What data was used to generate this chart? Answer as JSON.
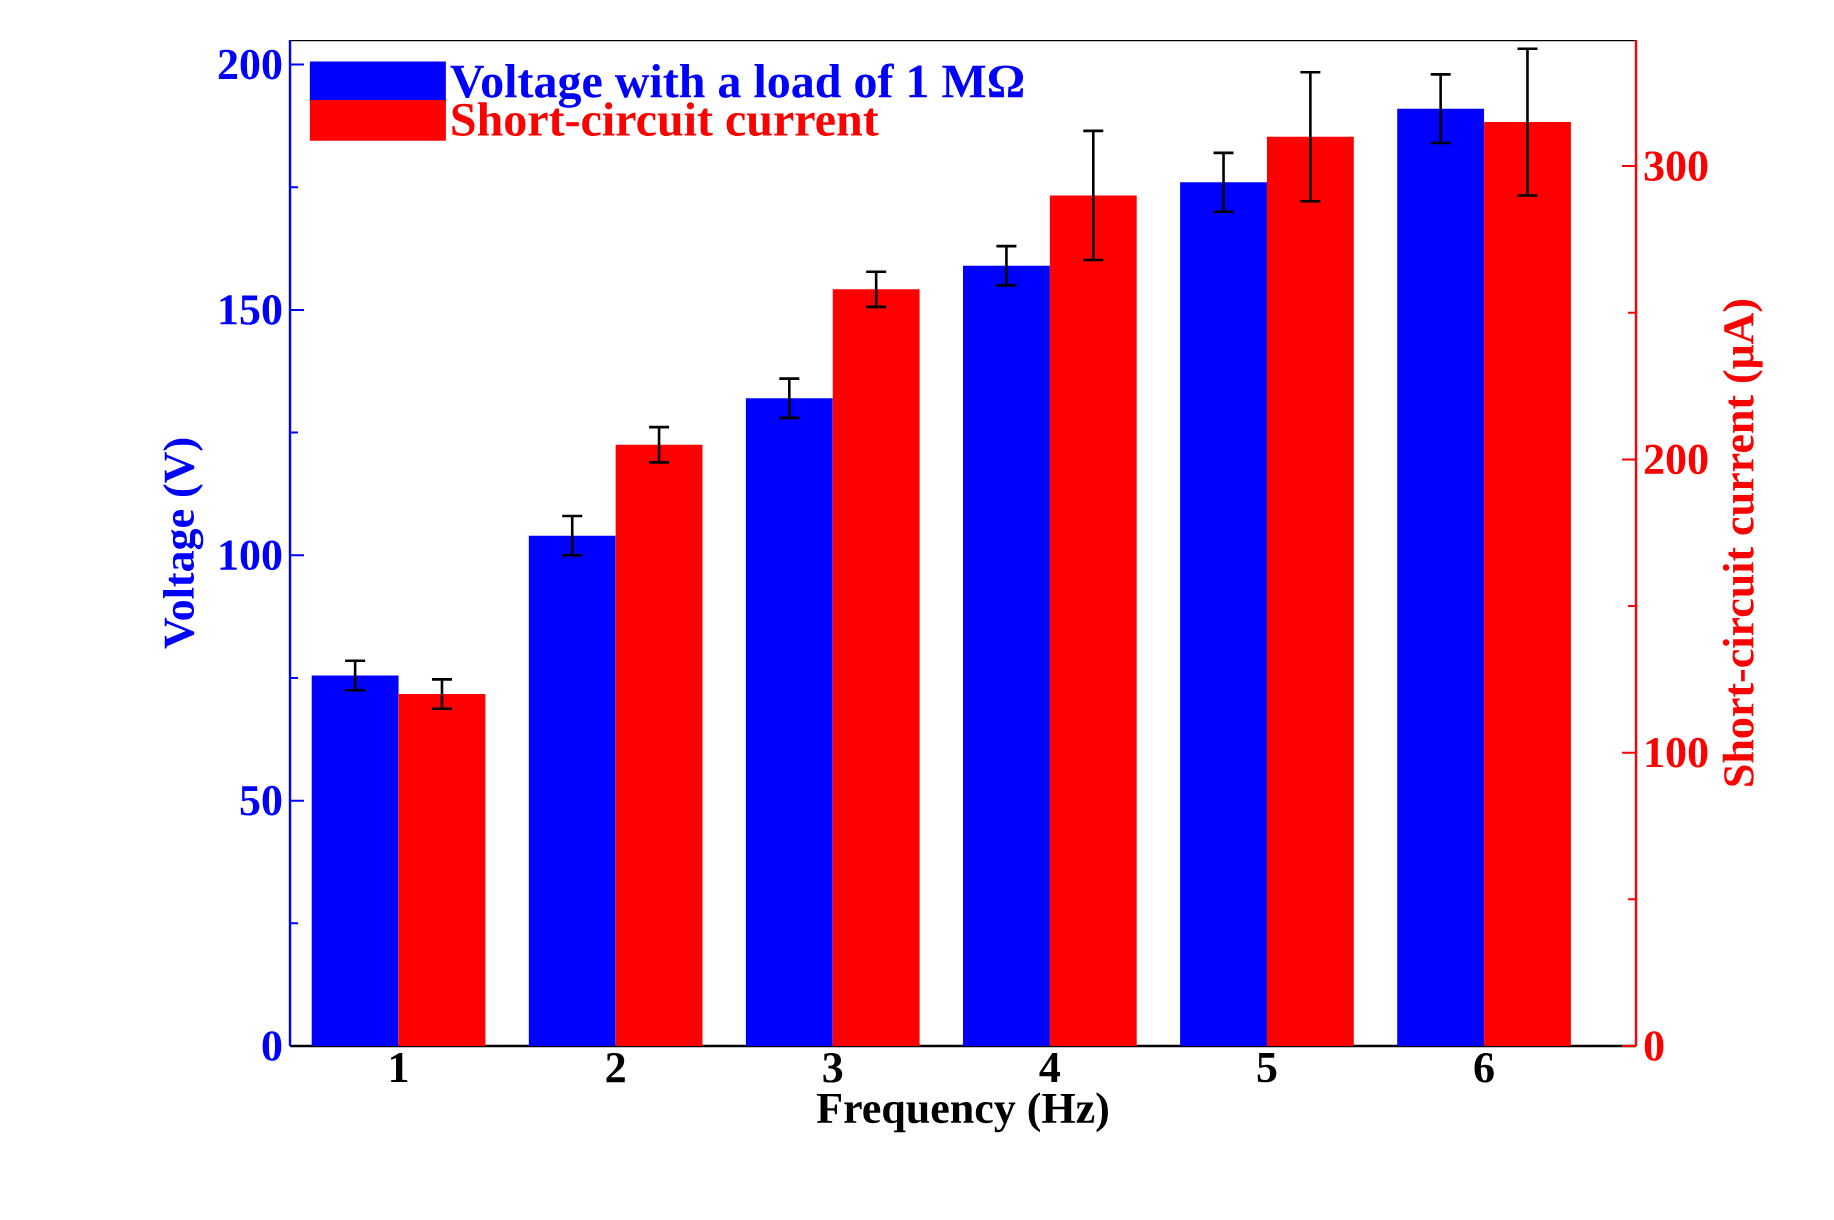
{
  "chart_data": {
    "type": "bar",
    "xlabel": "Frequency (Hz)",
    "ylabel": "Voltage (V)",
    "y2label": "Short-circuit current (μA)",
    "categories": [
      "1",
      "2",
      "3",
      "4",
      "5",
      "6"
    ],
    "series": [
      {
        "name": "Voltage with a load of 1 MΩ",
        "color": "#0000ff",
        "values": [
          75.5,
          104,
          132,
          159,
          176,
          191
        ],
        "errors": [
          3,
          4,
          4,
          4,
          6,
          7
        ]
      },
      {
        "name": "Short-circuit current",
        "color": "#ff0000",
        "axis": "y2",
        "values": [
          120,
          205,
          258,
          290,
          310,
          315
        ],
        "errors": [
          5,
          6,
          6,
          22,
          22,
          25
        ]
      }
    ],
    "ylim": [
      0,
      205
    ],
    "yticks": [
      0,
      {
        "value": 25,
        "label": null
      },
      50,
      {
        "value": 75,
        "label": null
      },
      100,
      {
        "value": 125,
        "label": null
      },
      150,
      {
        "value": 175,
        "label": null
      },
      200
    ],
    "y2lim": [
      0,
      343
    ],
    "y2ticks": [
      0,
      {
        "value": 50,
        "label": null
      },
      100,
      {
        "value": 150,
        "label": null
      },
      200,
      {
        "value": 250,
        "label": null
      },
      300
    ],
    "legend": "top left"
  }
}
